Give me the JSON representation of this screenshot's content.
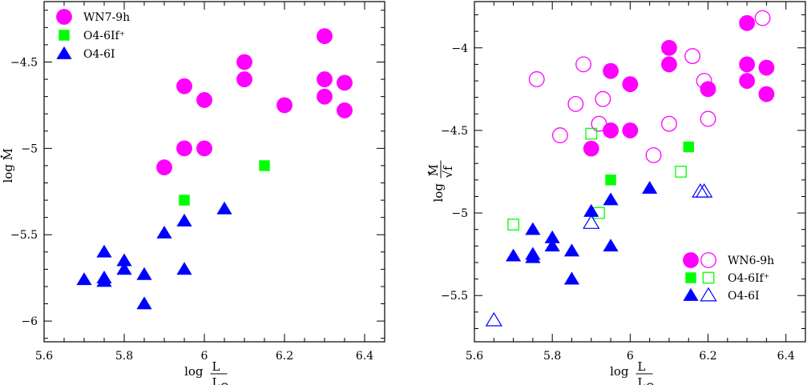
{
  "chart_data": [
    {
      "type": "scatter",
      "xlabel": "log L/L☉",
      "ylabel": "log Ṁ",
      "xlim": [
        5.6,
        6.45
      ],
      "ylim": [
        -6.12,
        -4.15
      ],
      "xticks": [
        "5.6",
        "5.8",
        "6",
        "6.2",
        "6.4"
      ],
      "yticks": [
        "-6",
        "-5.5",
        "-5",
        "-4.5"
      ],
      "legend_placement": "top-left",
      "series": [
        {
          "name": "WN7-9h",
          "marker": "filled-circle",
          "color": "#ff00ff",
          "points": [
            [
              5.9,
              -5.11
            ],
            [
              5.95,
              -5.0
            ],
            [
              5.95,
              -4.64
            ],
            [
              6.0,
              -5.0
            ],
            [
              6.0,
              -4.72
            ],
            [
              6.1,
              -4.6
            ],
            [
              6.1,
              -4.5
            ],
            [
              6.2,
              -4.75
            ],
            [
              6.3,
              -4.35
            ],
            [
              6.3,
              -4.6
            ],
            [
              6.3,
              -4.7
            ],
            [
              6.35,
              -4.62
            ],
            [
              6.35,
              -4.78
            ]
          ]
        },
        {
          "name": "O4-6If⁺",
          "marker": "filled-square",
          "color": "#00ff00",
          "points": [
            [
              5.95,
              -5.3
            ],
            [
              6.15,
              -5.1
            ]
          ]
        },
        {
          "name": "O4-6I",
          "marker": "filled-triangle",
          "color": "#0000ff",
          "points": [
            [
              5.7,
              -5.76
            ],
            [
              5.75,
              -5.6
            ],
            [
              5.75,
              -5.75
            ],
            [
              5.75,
              -5.77
            ],
            [
              5.8,
              -5.65
            ],
            [
              5.8,
              -5.7
            ],
            [
              5.85,
              -5.73
            ],
            [
              5.85,
              -5.9
            ],
            [
              5.9,
              -5.49
            ],
            [
              5.95,
              -5.42
            ],
            [
              5.95,
              -5.7
            ],
            [
              6.05,
              -5.35
            ]
          ]
        }
      ]
    },
    {
      "type": "scatter",
      "xlabel": "log L/L☉",
      "ylabel": "log Ṁ/√f",
      "xlim": [
        5.6,
        6.45
      ],
      "ylim": [
        -5.78,
        -3.72
      ],
      "xticks": [
        "5.6",
        "5.8",
        "6",
        "6.2",
        "6.4"
      ],
      "yticks": [
        "-5.5",
        "-5",
        "-4.5",
        "-4"
      ],
      "legend_placement": "bottom-right",
      "series": [
        {
          "name": "WN6-9h",
          "marker": "filled-circle",
          "color": "#ff00ff",
          "points": [
            [
              5.9,
              -4.61
            ],
            [
              5.95,
              -4.5
            ],
            [
              5.95,
              -4.14
            ],
            [
              6.0,
              -4.5
            ],
            [
              6.0,
              -4.22
            ],
            [
              6.1,
              -4.1
            ],
            [
              6.1,
              -4.0
            ],
            [
              6.2,
              -4.25
            ],
            [
              6.3,
              -3.85
            ],
            [
              6.3,
              -4.1
            ],
            [
              6.3,
              -4.2
            ],
            [
              6.35,
              -4.12
            ],
            [
              6.35,
              -4.28
            ]
          ]
        },
        {
          "name": "WN6-9h",
          "marker": "open-circle",
          "color": "#ff00ff",
          "points": [
            [
              5.76,
              -4.19
            ],
            [
              5.82,
              -4.53
            ],
            [
              5.86,
              -4.34
            ],
            [
              5.88,
              -4.1
            ],
            [
              5.92,
              -4.46
            ],
            [
              5.93,
              -4.31
            ],
            [
              6.06,
              -4.65
            ],
            [
              6.1,
              -4.46
            ],
            [
              6.16,
              -4.05
            ],
            [
              6.19,
              -4.2
            ],
            [
              6.2,
              -4.43
            ],
            [
              6.34,
              -3.82
            ]
          ]
        },
        {
          "name": "O4-6If⁺",
          "marker": "filled-square",
          "color": "#00ff00",
          "points": [
            [
              5.95,
              -4.8
            ],
            [
              6.15,
              -4.6
            ]
          ]
        },
        {
          "name": "O4-6If⁺",
          "marker": "open-square",
          "color": "#00ff00",
          "points": [
            [
              5.7,
              -5.07
            ],
            [
              5.9,
              -4.52
            ],
            [
              5.92,
              -5.0
            ],
            [
              6.13,
              -4.75
            ]
          ]
        },
        {
          "name": "O4-6I",
          "marker": "filled-triangle",
          "color": "#0000ff",
          "points": [
            [
              5.7,
              -5.26
            ],
            [
              5.75,
              -5.1
            ],
            [
              5.75,
              -5.25
            ],
            [
              5.75,
              -5.27
            ],
            [
              5.8,
              -5.15
            ],
            [
              5.8,
              -5.2
            ],
            [
              5.85,
              -5.23
            ],
            [
              5.85,
              -5.4
            ],
            [
              5.9,
              -4.99
            ],
            [
              5.95,
              -4.92
            ],
            [
              5.95,
              -5.2
            ],
            [
              6.05,
              -4.85
            ]
          ]
        },
        {
          "name": "O4-6I",
          "marker": "open-triangle",
          "color": "#0000ff",
          "points": [
            [
              5.65,
              -5.65
            ],
            [
              5.9,
              -5.06
            ],
            [
              6.18,
              -4.87
            ],
            [
              6.19,
              -4.87
            ]
          ]
        }
      ]
    }
  ]
}
